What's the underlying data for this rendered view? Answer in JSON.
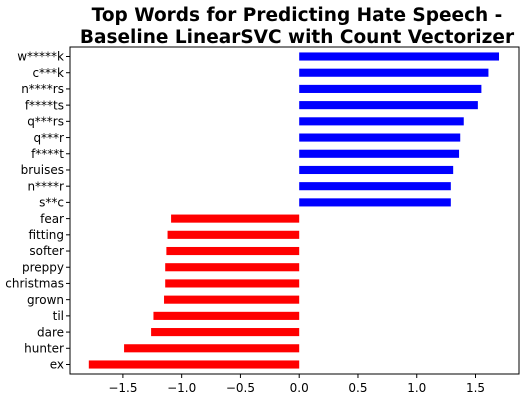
{
  "chart_data": {
    "type": "bar",
    "orientation": "horizontal",
    "title": [
      "Top Words for Predicting Hate Speech -",
      "Baseline LinearSVC with Count Vectorizer"
    ],
    "xlabel": "",
    "ylabel": "",
    "xlim": [
      -1.95,
      1.87
    ],
    "xticks": [
      -1.5,
      -1.0,
      -0.5,
      0.0,
      0.5,
      1.0,
      1.5
    ],
    "xtick_labels": [
      "−1.5",
      "−1.0",
      "−0.5",
      "0.0",
      "0.5",
      "1.0",
      "1.5"
    ],
    "grid": false,
    "legend": "none",
    "colors": {
      "positive": "#0000ff",
      "negative": "#ff0000"
    },
    "categories": [
      "w*****k",
      "c***k",
      "n****rs",
      "f****ts",
      "q***rs",
      "q***r",
      "f****t",
      "bruises",
      "n****r",
      "s**c",
      "fear",
      "fitting",
      "softer",
      "preppy",
      "christmas",
      "grown",
      "til",
      "dare",
      "hunter",
      "ex"
    ],
    "values": [
      1.7,
      1.61,
      1.55,
      1.52,
      1.4,
      1.37,
      1.36,
      1.31,
      1.29,
      1.29,
      -1.09,
      -1.12,
      -1.13,
      -1.14,
      -1.14,
      -1.15,
      -1.24,
      -1.26,
      -1.49,
      -1.79
    ]
  }
}
